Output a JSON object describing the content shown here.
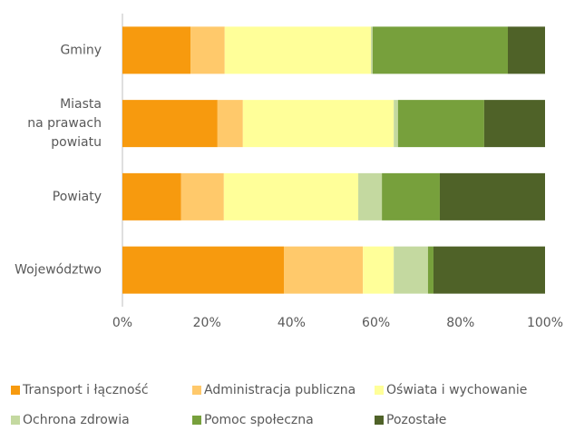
{
  "chart_data": {
    "type": "stacked_barh",
    "categories": [
      "Gminy",
      "Miasta\nna prawach\npowiatu",
      "Powiaty",
      "Województwo"
    ],
    "series": [
      {
        "name": "Transport i łączność",
        "color": "#f79a0e",
        "values": [
          16.1,
          22.5,
          13.9,
          38.2
        ]
      },
      {
        "name": "Administracja publiczna",
        "color": "#ffc96b",
        "values": [
          8.1,
          6.0,
          10.1,
          18.7
        ]
      },
      {
        "name": "Oświata i wychowanie",
        "color": "#ffff99",
        "values": [
          34.6,
          35.7,
          31.8,
          7.3
        ]
      },
      {
        "name": "Ochrona zdrowia",
        "color": "#c4d9a0",
        "values": [
          0.4,
          1.0,
          5.6,
          8.1
        ]
      },
      {
        "name": "Pomoc społeczna",
        "color": "#77a03c",
        "values": [
          32.0,
          20.4,
          13.7,
          1.3
        ]
      },
      {
        "name": "Pozostałe",
        "color": "#4f6228",
        "values": [
          8.8,
          14.4,
          24.9,
          26.4
        ]
      }
    ],
    "xlim": [
      0,
      100
    ],
    "xticks": [
      {
        "value": 0,
        "label": "0%"
      },
      {
        "value": 20,
        "label": "20%"
      },
      {
        "value": 40,
        "label": "40%"
      },
      {
        "value": 60,
        "label": "60%"
      },
      {
        "value": 80,
        "label": "80%"
      },
      {
        "value": 100,
        "label": "100%"
      }
    ],
    "legend": "bottom"
  }
}
